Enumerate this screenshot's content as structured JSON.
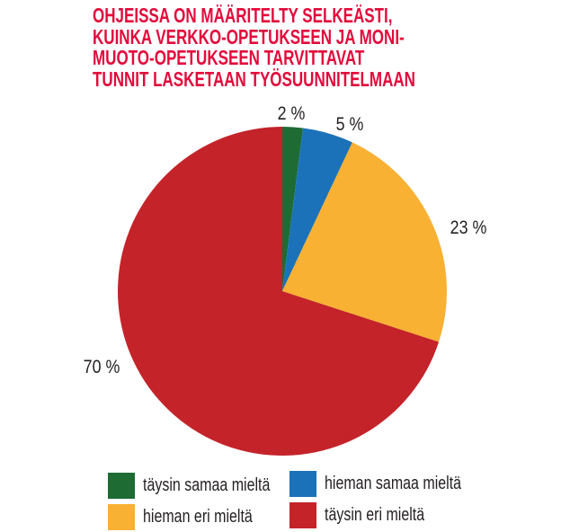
{
  "title": {
    "lines": [
      "OHJEISSA ON MÄÄRITELTY SELKEÄSTI,",
      "KUINKA VERKKO-OPETUKSEEN JA MONI-",
      "MUOTO-OPETUKSEEN TARVITTAVAT",
      "TUNNIT LASKETAAN TYÖSUUNNITELMAAN"
    ],
    "color": "#e20b3c"
  },
  "chart_data": {
    "type": "pie",
    "categories": [
      "täysin samaa mieltä",
      "hieman samaa mieltä",
      "hieman eri mieltä",
      "täysin eri mieltä"
    ],
    "values": [
      2,
      5,
      23,
      70
    ],
    "labels": [
      "2 %",
      "5 %",
      "23 %",
      "70 %"
    ],
    "colors": [
      "#1e6b34",
      "#1b72b8",
      "#f8b133",
      "#c4232a"
    ],
    "title": "Ohjeissa on määritelty selkeästi, kuinka verkko-opetukseen ja monimuoto-opetukseen tarvittavat tunnit lasketaan työsuunnitelmaan",
    "start_angle_deg": 0,
    "direction": "clockwise",
    "legend_position": "bottom"
  },
  "legend": {
    "items": [
      {
        "label": "täysin samaa mieltä",
        "color": "#1e6b34"
      },
      {
        "label": "hieman samaa mieltä",
        "color": "#1b72b8"
      },
      {
        "label": "hieman eri mieltä",
        "color": "#f8b133"
      },
      {
        "label": "täysin eri mieltä",
        "color": "#c4232a"
      }
    ]
  }
}
